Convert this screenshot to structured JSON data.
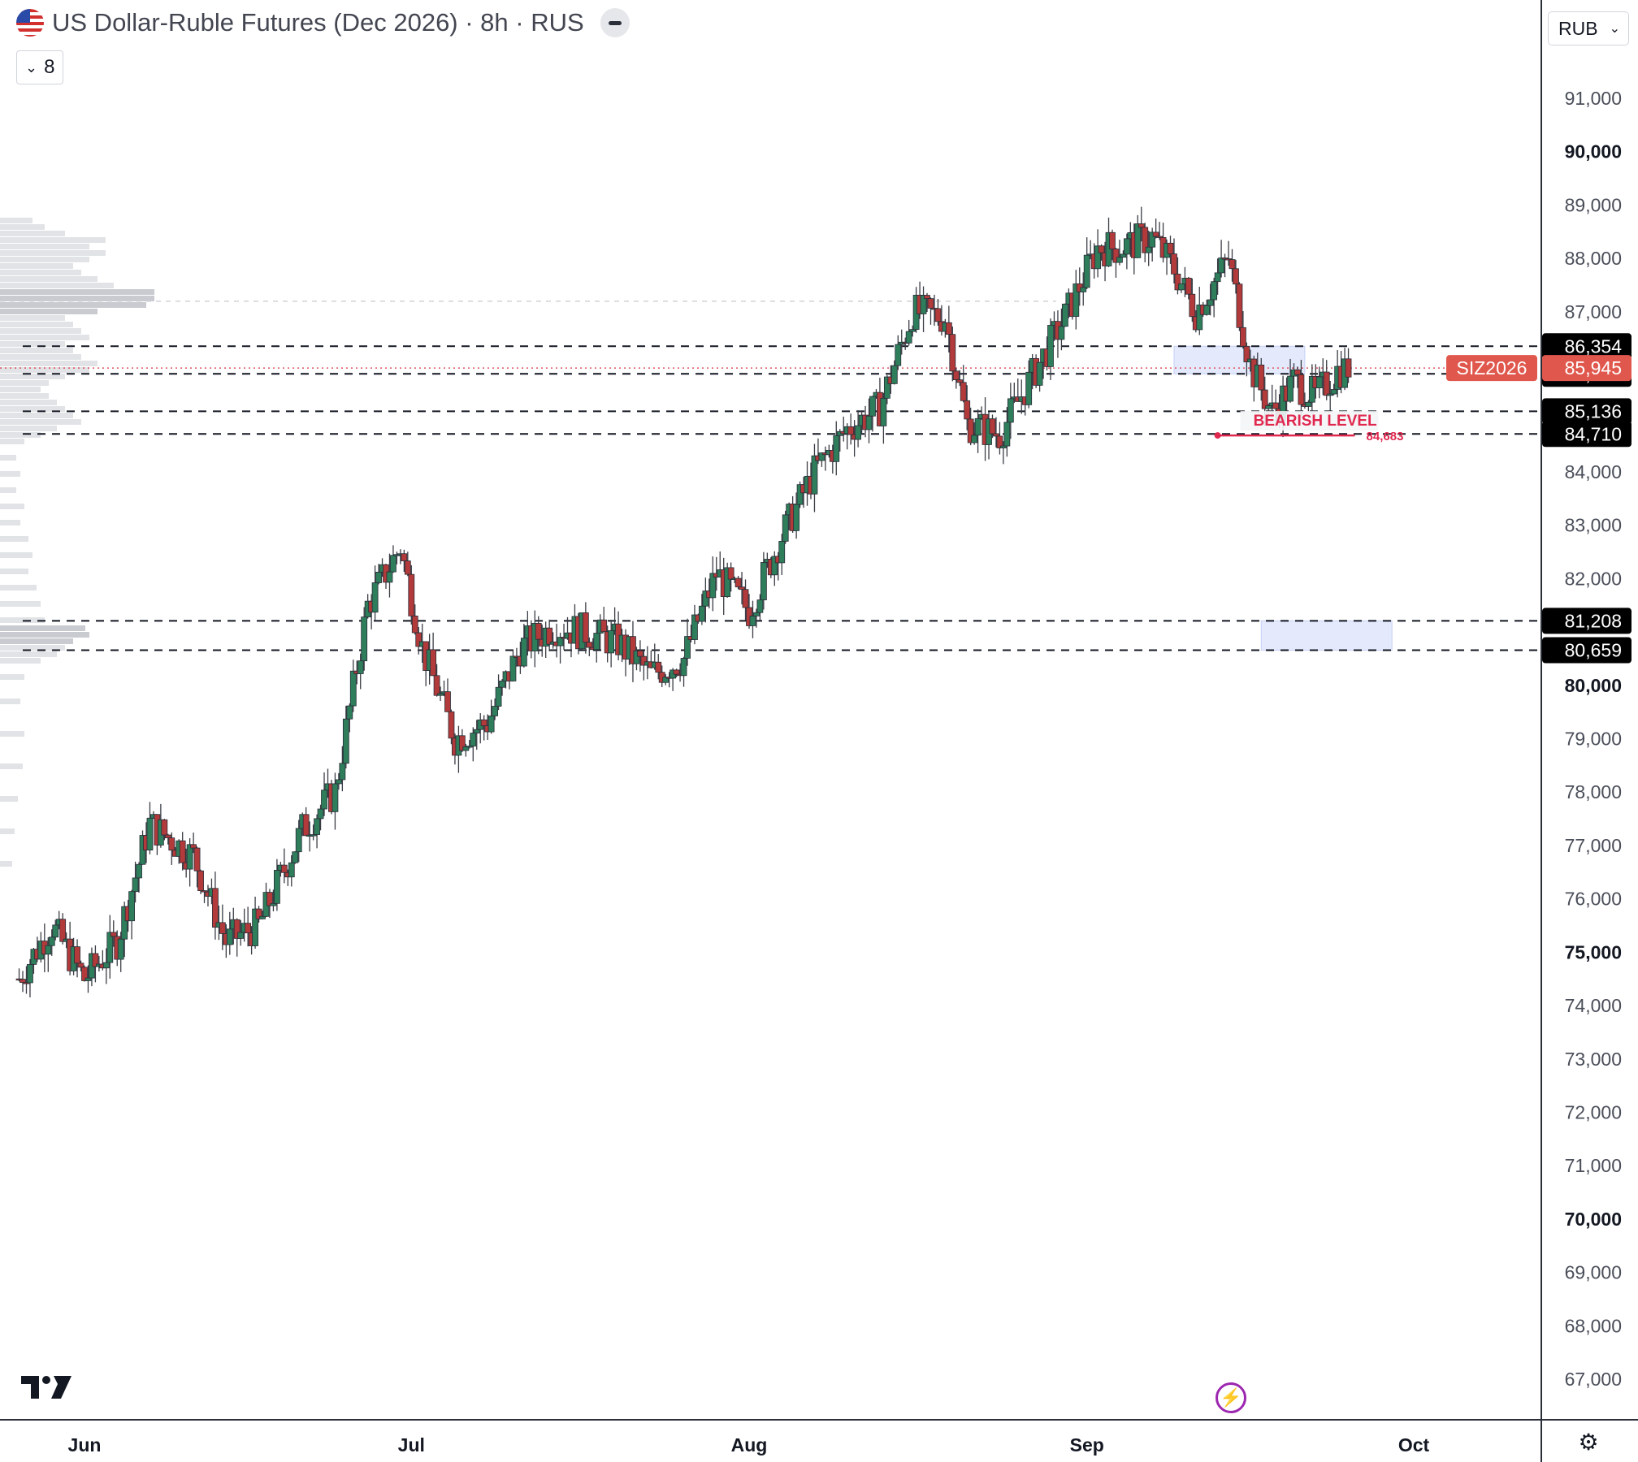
{
  "header": {
    "title": "US Dollar-Ruble Futures (Dec 2026) · 8h · RUS",
    "legend_toggle": "8"
  },
  "currency_selector": {
    "value": "RUB"
  },
  "colors": {
    "up": "#089981",
    "down": "#f23645",
    "candle_up": "#2e7d5b",
    "candle_down": "#b23a3a",
    "zone": "#dbe3fb",
    "bearish": "#e0284f"
  },
  "icons": {
    "flag": "us-flag-icon",
    "eye": "hide-indicator-icon",
    "bolt": "lightning-icon",
    "settings": "gear-icon",
    "logo": "tradingview-logo"
  },
  "chart_data": {
    "type": "candlestick",
    "symbol_label": "SIZ2026",
    "last_price": "85,945",
    "y_axis": {
      "ylim": [
        66500,
        92500
      ],
      "ticks": [
        {
          "v": 91000,
          "label": "91,000",
          "bold": false
        },
        {
          "v": 90000,
          "label": "90,000",
          "bold": true
        },
        {
          "v": 89000,
          "label": "89,000",
          "bold": false
        },
        {
          "v": 88000,
          "label": "88,000",
          "bold": false
        },
        {
          "v": 87000,
          "label": "87,000",
          "bold": false
        },
        {
          "v": 84000,
          "label": "84,000",
          "bold": false
        },
        {
          "v": 83000,
          "label": "83,000",
          "bold": false
        },
        {
          "v": 82000,
          "label": "82,000",
          "bold": false
        },
        {
          "v": 80000,
          "label": "80,000",
          "bold": true
        },
        {
          "v": 79000,
          "label": "79,000",
          "bold": false
        },
        {
          "v": 78000,
          "label": "78,000",
          "bold": false
        },
        {
          "v": 77000,
          "label": "77,000",
          "bold": false
        },
        {
          "v": 76000,
          "label": "76,000",
          "bold": false
        },
        {
          "v": 75000,
          "label": "75,000",
          "bold": true
        },
        {
          "v": 74000,
          "label": "74,000",
          "bold": false
        },
        {
          "v": 73000,
          "label": "73,000",
          "bold": false
        },
        {
          "v": 72000,
          "label": "72,000",
          "bold": false
        },
        {
          "v": 71000,
          "label": "71,000",
          "bold": false
        },
        {
          "v": 70000,
          "label": "70,000",
          "bold": true
        },
        {
          "v": 69000,
          "label": "69,000",
          "bold": false
        },
        {
          "v": 68000,
          "label": "68,000",
          "bold": false
        },
        {
          "v": 67000,
          "label": "67,000",
          "bold": false
        }
      ]
    },
    "x_axis": {
      "start": "2026-05-26",
      "end": "2026-10-04",
      "ticks": [
        {
          "date": "2026-06-01",
          "label": "Jun"
        },
        {
          "date": "2026-07-01",
          "label": "Jul"
        },
        {
          "date": "2026-08-01",
          "label": "Aug"
        },
        {
          "date": "2026-09-01",
          "label": "Sep"
        },
        {
          "date": "2026-10-01",
          "label": "Oct"
        }
      ]
    },
    "levels": [
      {
        "value": 86354,
        "label": "86,354"
      },
      {
        "value": 85837,
        "label": "85,837"
      },
      {
        "value": 85136,
        "label": "85,136"
      },
      {
        "value": 84710,
        "label": "84,710"
      },
      {
        "value": 81208,
        "label": "81,208"
      },
      {
        "value": 80659,
        "label": "80,659"
      }
    ],
    "ghost_level": 87000,
    "zones": [
      {
        "from": "2026-09-09",
        "to": "2026-09-21",
        "low": 85837,
        "high": 86354
      },
      {
        "from": "2026-09-17",
        "to": "2026-09-29",
        "low": 80659,
        "high": 81208
      }
    ],
    "bearish_level": {
      "text": "BEARISH LEVEL",
      "value": 84683,
      "value_label": "84,683",
      "from": "2026-09-13",
      "to": "2026-09-25"
    },
    "price_path": [
      {
        "date": "2026-05-26",
        "close": 74500
      },
      {
        "date": "2026-05-29",
        "close": 75500
      },
      {
        "date": "2026-06-01",
        "close": 74500
      },
      {
        "date": "2026-06-04",
        "close": 75200
      },
      {
        "date": "2026-06-07",
        "close": 77400
      },
      {
        "date": "2026-06-11",
        "close": 76800
      },
      {
        "date": "2026-06-14",
        "close": 75200
      },
      {
        "date": "2026-06-17",
        "close": 75500
      },
      {
        "date": "2026-06-21",
        "close": 77300
      },
      {
        "date": "2026-06-24",
        "close": 78000
      },
      {
        "date": "2026-06-27",
        "close": 81500
      },
      {
        "date": "2026-06-30",
        "close": 82600
      },
      {
        "date": "2026-07-02",
        "close": 80700
      },
      {
        "date": "2026-07-05",
        "close": 79000
      },
      {
        "date": "2026-07-08",
        "close": 79300
      },
      {
        "date": "2026-07-11",
        "close": 80700
      },
      {
        "date": "2026-07-14",
        "close": 81100
      },
      {
        "date": "2026-07-17",
        "close": 81000
      },
      {
        "date": "2026-07-20",
        "close": 80800
      },
      {
        "date": "2026-07-23",
        "close": 80200
      },
      {
        "date": "2026-07-26",
        "close": 80500
      },
      {
        "date": "2026-07-29",
        "close": 82100
      },
      {
        "date": "2026-08-01",
        "close": 81400
      },
      {
        "date": "2026-08-04",
        "close": 82800
      },
      {
        "date": "2026-08-07",
        "close": 84000
      },
      {
        "date": "2026-08-10",
        "close": 84800
      },
      {
        "date": "2026-08-13",
        "close": 85200
      },
      {
        "date": "2026-08-16",
        "close": 87000
      },
      {
        "date": "2026-08-19",
        "close": 86900
      },
      {
        "date": "2026-08-21",
        "close": 84900
      },
      {
        "date": "2026-08-24",
        "close": 84700
      },
      {
        "date": "2026-08-27",
        "close": 85800
      },
      {
        "date": "2026-08-30",
        "close": 86900
      },
      {
        "date": "2026-09-02",
        "close": 88200
      },
      {
        "date": "2026-09-04",
        "close": 88200
      },
      {
        "date": "2026-09-07",
        "close": 88400
      },
      {
        "date": "2026-09-09",
        "close": 87800
      },
      {
        "date": "2026-09-11",
        "close": 87000
      },
      {
        "date": "2026-09-14",
        "close": 88000
      },
      {
        "date": "2026-09-16",
        "close": 86000
      },
      {
        "date": "2026-09-18",
        "close": 85100
      },
      {
        "date": "2026-09-20",
        "close": 85700
      },
      {
        "date": "2026-09-22",
        "close": 85400
      },
      {
        "date": "2026-09-24",
        "close": 85900
      },
      {
        "date": "2026-09-25",
        "close": 85945
      }
    ]
  }
}
